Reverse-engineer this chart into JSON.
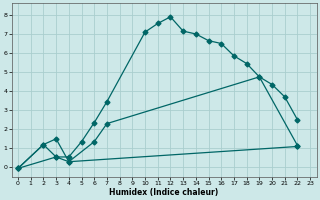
{
  "xlabel": "Humidex (Indice chaleur)",
  "bg_color": "#cde8e8",
  "grid_color": "#aacece",
  "line_color": "#006666",
  "xlim": [
    -0.5,
    23.5
  ],
  "ylim": [
    -0.5,
    8.6
  ],
  "xticks": [
    0,
    1,
    2,
    3,
    4,
    5,
    6,
    7,
    8,
    9,
    10,
    11,
    12,
    13,
    14,
    15,
    16,
    17,
    18,
    19,
    20,
    21,
    22,
    23
  ],
  "yticks": [
    0,
    1,
    2,
    3,
    4,
    5,
    6,
    7,
    8
  ],
  "curve1_x": [
    0,
    2,
    3,
    4,
    5,
    6,
    7,
    10,
    11,
    12,
    13,
    14,
    15,
    16,
    17,
    18,
    19,
    20,
    21,
    22
  ],
  "curve1_y": [
    -0.05,
    1.2,
    0.55,
    0.55,
    1.35,
    2.35,
    3.45,
    7.1,
    7.55,
    7.9,
    7.15,
    7.0,
    6.65,
    6.5,
    5.85,
    5.45,
    4.75,
    4.35,
    3.7,
    2.5
  ],
  "curve2_x": [
    0,
    2,
    3,
    4,
    6,
    7,
    19,
    22
  ],
  "curve2_y": [
    -0.05,
    1.2,
    1.5,
    0.3,
    1.35,
    2.3,
    4.75,
    1.15
  ],
  "curve3_x": [
    0,
    3,
    4,
    22
  ],
  "curve3_y": [
    -0.05,
    0.55,
    0.3,
    1.1
  ],
  "marker": "D",
  "markersize": 2.5,
  "linewidth": 0.9
}
